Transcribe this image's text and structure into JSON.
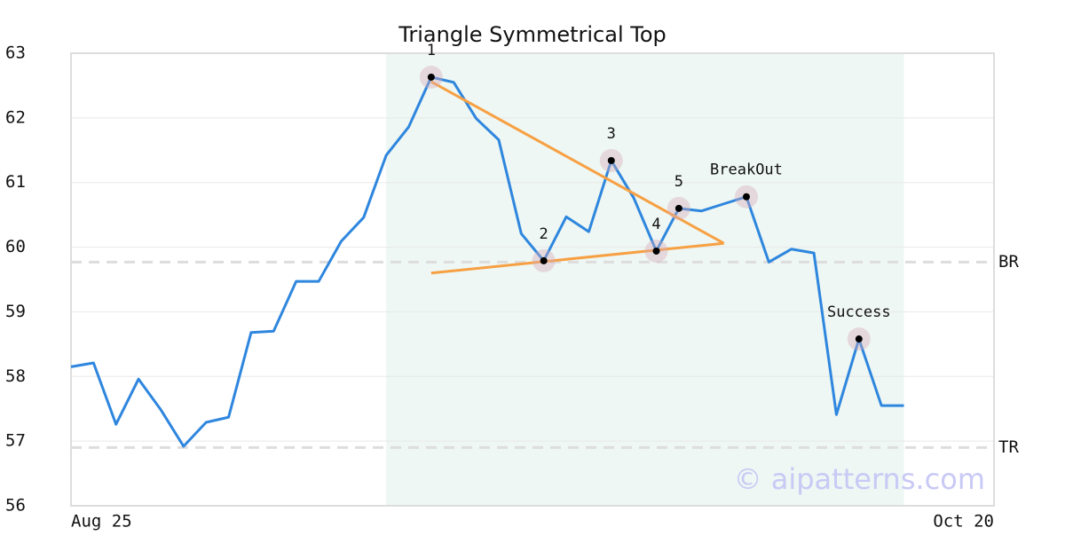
{
  "chart_data": {
    "type": "line",
    "title": "Triangle Symmetrical Top",
    "categories": [
      "Aug 25",
      null,
      null,
      null,
      null,
      null,
      null,
      null,
      null,
      null,
      null,
      null,
      null,
      null,
      null,
      null,
      null,
      null,
      null,
      null,
      null,
      null,
      null,
      null,
      null,
      null,
      null,
      null,
      null,
      null,
      null,
      null,
      null,
      null,
      null,
      null,
      null,
      null,
      null,
      null,
      null,
      "Oct 20"
    ],
    "series": [
      {
        "color": "#2e86de",
        "values": [
          58.15,
          58.21,
          57.26,
          57.96,
          57.48,
          56.92,
          57.29,
          57.37,
          58.68,
          58.7,
          59.47,
          59.47,
          60.09,
          60.46,
          61.42,
          61.86,
          62.63,
          62.55,
          61.99,
          61.66,
          60.21,
          59.79,
          60.47,
          60.24,
          61.34,
          60.76,
          59.94,
          60.6,
          60.56,
          60.67,
          60.78,
          59.77,
          59.97,
          59.91,
          57.41,
          58.58,
          57.55,
          57.55,
          null,
          null,
          null,
          null
        ]
      }
    ],
    "ylim": [
      56,
      63
    ],
    "yticks": [
      56,
      57,
      58,
      59,
      60,
      61,
      62,
      63
    ],
    "grid": true,
    "shaded_range": [
      14,
      37
    ],
    "points": [
      {
        "label": "1",
        "index": 16
      },
      {
        "label": "2",
        "index": 21
      },
      {
        "label": "3",
        "index": 24
      },
      {
        "label": "4",
        "index": 26
      },
      {
        "label": "5",
        "index": 27
      },
      {
        "label": "BreakOut",
        "index": 30
      },
      {
        "label": "Success",
        "index": 35
      }
    ],
    "trendlines": [
      {
        "color": "#f7a043",
        "x": [
          16,
          29
        ],
        "y": [
          62.56,
          60.06
        ]
      },
      {
        "color": "#f7a043",
        "x": [
          16,
          29
        ],
        "y": [
          59.6,
          60.06
        ]
      }
    ],
    "reference_lines": [
      {
        "label": "BR",
        "value": 59.77
      },
      {
        "label": "TR",
        "value": 56.9
      }
    ],
    "watermark": "© aipatterns.com"
  }
}
